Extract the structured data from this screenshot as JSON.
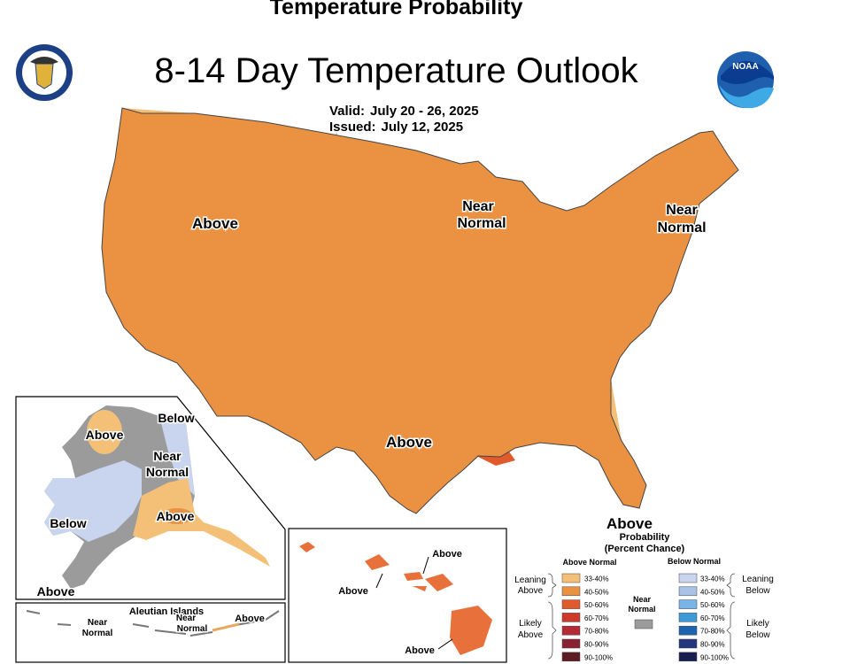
{
  "header": {
    "top_title": "Temperature Probability",
    "main_title": "8-14 Day Temperature Outlook",
    "valid_label": "Valid:",
    "valid_value": "July 20 - 26, 2025",
    "issued_label": "Issued:",
    "issued_value": "July 12, 2025"
  },
  "logos": {
    "left": "department-of-commerce-seal",
    "right": "noaa-logo",
    "right_text": "NOAA"
  },
  "map_labels": {
    "conus_above_west": "Above",
    "conus_above_south": "Above",
    "conus_near_normal_midwest_1": "Near",
    "conus_near_normal_midwest_2": "Normal",
    "conus_near_normal_ne_1": "Near",
    "conus_near_normal_ne_2": "Normal",
    "ak_below_ne": "Below",
    "ak_above_n": "Above",
    "ak_near_normal_1": "Near",
    "ak_near_normal_2": "Normal",
    "ak_below_w": "Below",
    "ak_above_s": "Above",
    "ak_above_sw": "Above",
    "aleutian_title": "Aleutian Islands",
    "aleutian_near_normal_1a": "Near",
    "aleutian_near_normal_1b": "Normal",
    "aleutian_near_normal_2a": "Near",
    "aleutian_near_normal_2b": "Normal",
    "aleutian_above": "Above",
    "hi_above_ne": "Above",
    "hi_above_w": "Above",
    "hi_above_s": "Above"
  },
  "legend": {
    "big_label": "Above",
    "title_1": "Probability",
    "title_2": "(Percent Chance)",
    "above_header": "Above Normal",
    "below_header": "Below Normal",
    "near_1": "Near",
    "near_2": "Normal",
    "leaning_above_1": "Leaning",
    "leaning_above_2": "Above",
    "likely_above_1": "Likely",
    "likely_above_2": "Above",
    "leaning_below_1": "Leaning",
    "leaning_below_2": "Below",
    "likely_below_1": "Likely",
    "likely_below_2": "Below",
    "above_bins": [
      {
        "label": "33-40%",
        "color": "#f4c078"
      },
      {
        "label": "40-50%",
        "color": "#ea9142"
      },
      {
        "label": "50-60%",
        "color": "#e05a2c"
      },
      {
        "label": "60-70%",
        "color": "#cc3b2a"
      },
      {
        "label": "70-80%",
        "color": "#b52a35"
      },
      {
        "label": "80-90%",
        "color": "#8a2231"
      },
      {
        "label": "90-100%",
        "color": "#5e1d24"
      }
    ],
    "below_bins": [
      {
        "label": "33-40%",
        "color": "#c9d4ee"
      },
      {
        "label": "40-50%",
        "color": "#a8c2e8"
      },
      {
        "label": "50-60%",
        "color": "#79b4e8"
      },
      {
        "label": "60-70%",
        "color": "#3e9ad8"
      },
      {
        "label": "70-80%",
        "color": "#1d64b0"
      },
      {
        "label": "80-90%",
        "color": "#22357e"
      },
      {
        "label": "90-100%",
        "color": "#1a1f52"
      }
    ],
    "near_color": "#9b9b9b"
  },
  "colors": {
    "lean_above": "#f4c078",
    "above_40_50": "#ea9142",
    "above_50_60": "#e05a2c",
    "near_normal": "#9b9b9b",
    "below_33_40": "#c9d4ee"
  }
}
